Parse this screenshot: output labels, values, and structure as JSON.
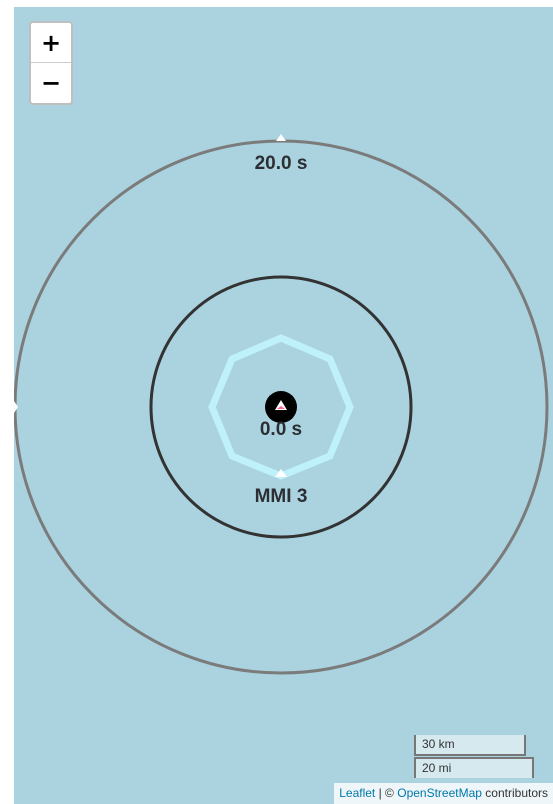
{
  "map": {
    "background_color": "#aad3df"
  },
  "zoom": {
    "in_label": "+",
    "out_label": "−"
  },
  "rings": {
    "outer_label": "20.0 s",
    "inner_label": "MMI 3",
    "center_label": "0.0 s",
    "outer_color": "#7b7b7b",
    "inner_color": "#333333",
    "mmi_polygon_color": "#bff1fb"
  },
  "scale": {
    "metric": "30 km",
    "imperial": "20 mi"
  },
  "attribution": {
    "leaflet": "Leaflet",
    "separator": "| ©",
    "osm": "OpenStreetMap",
    "suffix": "contributors"
  }
}
